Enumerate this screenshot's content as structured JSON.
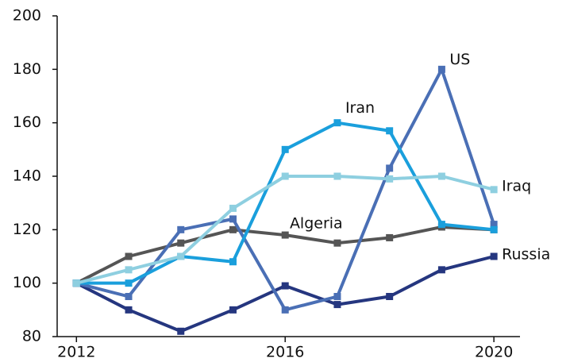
{
  "chart_data": {
    "type": "line",
    "x": [
      2012,
      2013,
      2014,
      2015,
      2016,
      2017,
      2018,
      2019,
      2020
    ],
    "xlim": [
      2011.6,
      2020.5
    ],
    "xticks": [
      2012,
      2016,
      2020
    ],
    "ylim": [
      80,
      200
    ],
    "yticks": [
      80,
      100,
      120,
      140,
      160,
      180,
      200
    ],
    "series": [
      {
        "name": "Algeria",
        "color": "#555555",
        "values": [
          100,
          110,
          115,
          120,
          118,
          115,
          117,
          121,
          120
        ]
      },
      {
        "name": "Russia",
        "color": "#25367f",
        "values": [
          100,
          90,
          82,
          90,
          99,
          92,
          95,
          105,
          110
        ]
      },
      {
        "name": "US",
        "color": "#4a6fb5",
        "values": [
          100,
          95,
          120,
          124,
          90,
          95,
          143,
          180,
          122
        ]
      },
      {
        "name": "Iran",
        "color": "#1a9fdc",
        "values": [
          100,
          100,
          110,
          108,
          150,
          160,
          157,
          122,
          120
        ]
      },
      {
        "name": "Iraq",
        "color": "#8ecfe0",
        "values": [
          100,
          105,
          110,
          128,
          140,
          140,
          139,
          140,
          135
        ]
      }
    ]
  }
}
